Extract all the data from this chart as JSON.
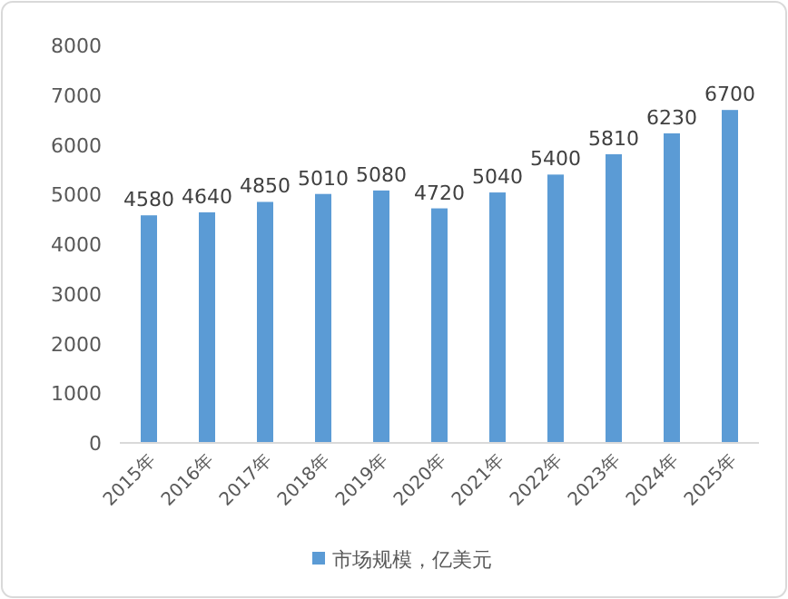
{
  "chart_data": {
    "type": "bar",
    "categories": [
      "2015年",
      "2016年",
      "2017年",
      "2018年",
      "2019年",
      "2020年",
      "2021年",
      "2022年",
      "2023年",
      "2024年",
      "2025年"
    ],
    "series": [
      {
        "name": "市场规模，亿美元",
        "color": "#5b9bd5",
        "values": [
          4580,
          4640,
          4850,
          5010,
          5080,
          4720,
          5040,
          5400,
          5810,
          6230,
          6700
        ]
      }
    ],
    "ylim": [
      0,
      8000
    ],
    "yticks": [
      0,
      1000,
      2000,
      3000,
      4000,
      5000,
      6000,
      7000,
      8000
    ],
    "data_labels": true,
    "legend": "bottom"
  }
}
